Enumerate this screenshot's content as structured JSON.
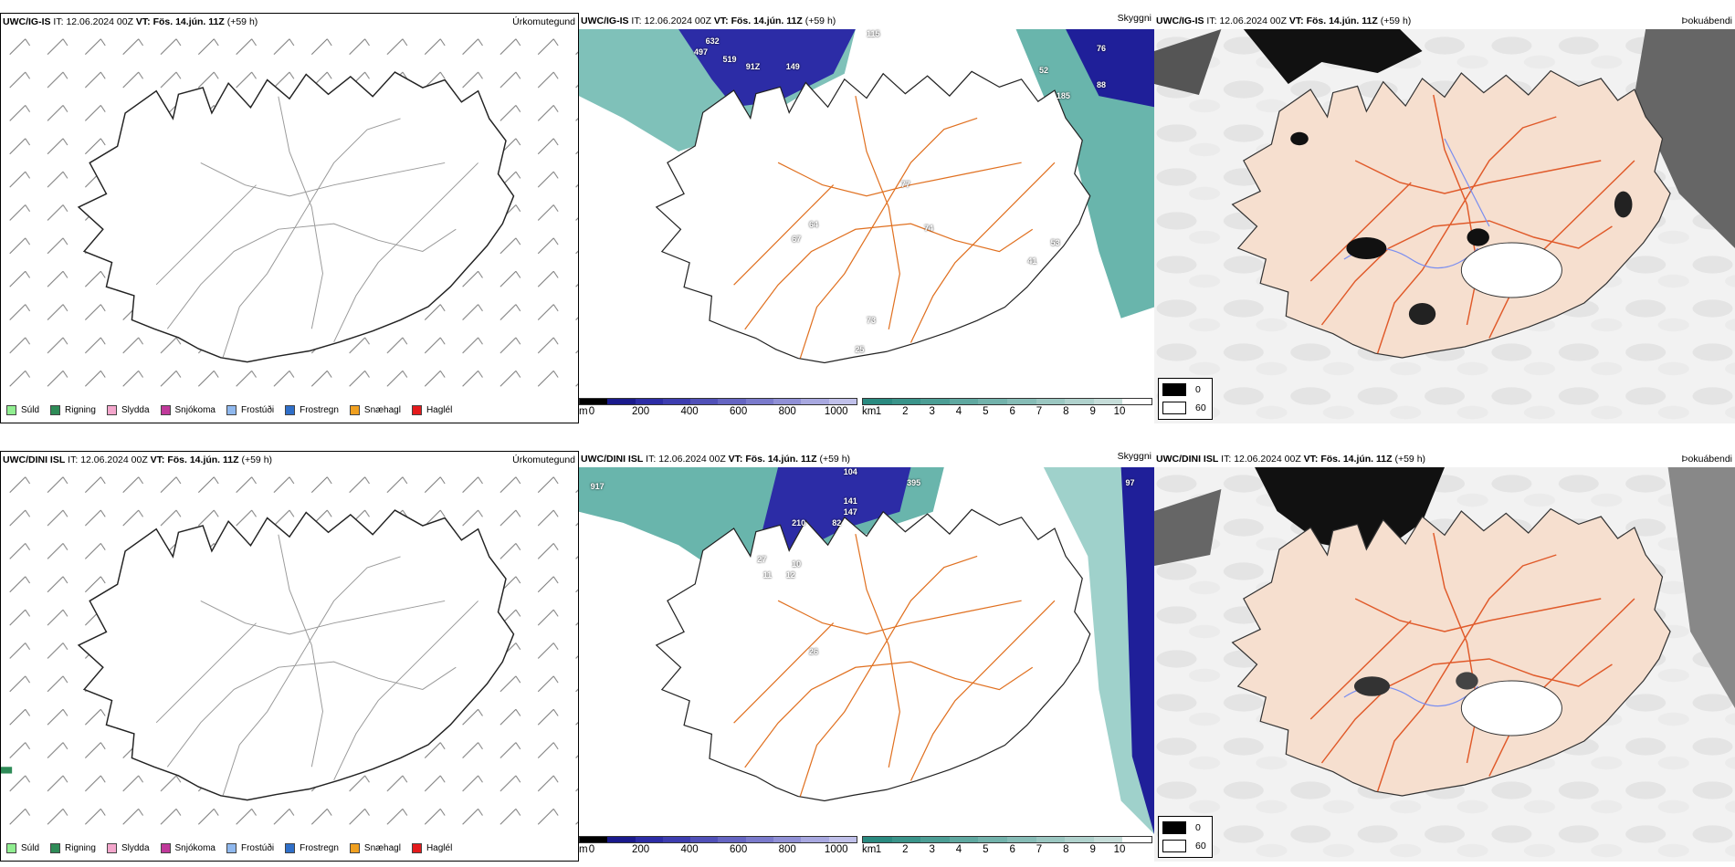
{
  "rows": [
    {
      "model": "UWC/IG-IS",
      "it_label": "IT:",
      "it_value": "12.06.2024 00Z",
      "vt_label": "VT:",
      "vt_value": "Fös. 14.jún. 11Z",
      "lead": "(+59 h)",
      "panel_titles": [
        "Úrkomutegund",
        "Skyggni",
        "Þokuábendi"
      ]
    },
    {
      "model": "UWC/DINI ISL",
      "it_label": "IT:",
      "it_value": "12.06.2024 00Z",
      "vt_label": "VT:",
      "vt_value": "Fös. 14.jún. 11Z",
      "lead": "(+59 h)",
      "panel_titles": [
        "Úrkomutegund",
        "Skyggni",
        "Þokuábendi"
      ]
    }
  ],
  "precip_legend": [
    {
      "label": "Súld",
      "color": "#90ee90"
    },
    {
      "label": "Rigning",
      "color": "#2e8b57"
    },
    {
      "label": "Slydda",
      "color": "#f4a6cc"
    },
    {
      "label": "Snjókoma",
      "color": "#c0399a"
    },
    {
      "label": "Frostúði",
      "color": "#8fb8ee"
    },
    {
      "label": "Frostregn",
      "color": "#2f6fc9"
    },
    {
      "label": "Snæhagl",
      "color": "#f0a020"
    },
    {
      "label": "Haglél",
      "color": "#e41a1c"
    }
  ],
  "cloud_scale": {
    "unit": "m",
    "ticks": [
      "0",
      "200",
      "400",
      "600",
      "800",
      "1000"
    ],
    "colors": [
      "#000000",
      "#1a1a8c",
      "#2c2ca6",
      "#3d3db0",
      "#5050b8",
      "#6565c2",
      "#7a7acc",
      "#9090d6",
      "#a8a8e0",
      "#c0c0ea"
    ]
  },
  "vis_scale": {
    "unit": "km",
    "ticks": [
      "1",
      "2",
      "3",
      "4",
      "5",
      "6",
      "7",
      "8",
      "9",
      "10"
    ],
    "colors": [
      "#2a8a80",
      "#3a948a",
      "#4c9e95",
      "#5fa8a0",
      "#72b2ab",
      "#86bcb6",
      "#9bc7c1",
      "#b0d2cd",
      "#c6ddd9",
      "#ffffff"
    ]
  },
  "fog_key": [
    {
      "value": "0",
      "color": "#000000"
    },
    {
      "value": "60",
      "color": "#ffffff"
    }
  ],
  "cloud_labels": [
    [
      "632",
      "497",
      "519",
      "91Z",
      "149",
      "115",
      "76",
      "52",
      "88",
      "185",
      "64",
      "67",
      "77",
      "74",
      "73",
      "53",
      "41",
      "25"
    ],
    [
      "917",
      "104",
      "395",
      "97",
      "141",
      "147",
      "210",
      "82",
      "27",
      "10",
      "11",
      "12",
      "26"
    ]
  ]
}
